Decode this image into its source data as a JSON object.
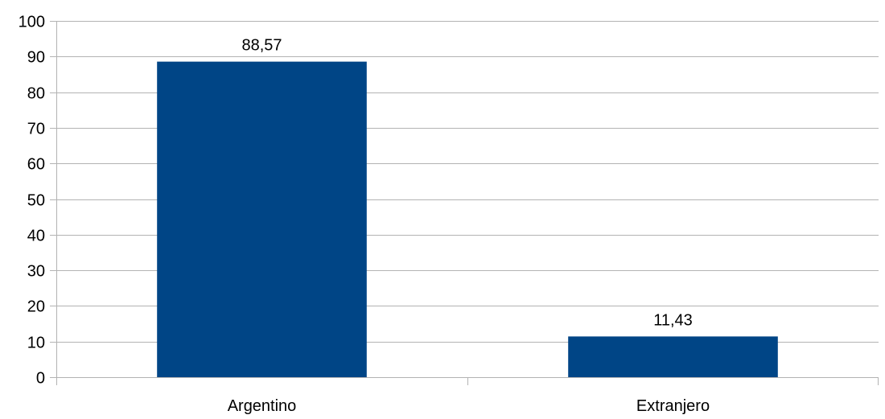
{
  "chart_data": {
    "type": "bar",
    "categories": [
      "Argentino",
      "Extranjero"
    ],
    "values": [
      88.57,
      11.43
    ],
    "data_labels": [
      "88,57",
      "11,43"
    ],
    "title": "",
    "xlabel": "",
    "ylabel": "",
    "ylim": [
      0,
      100
    ],
    "yticks": [
      0,
      10,
      20,
      30,
      40,
      50,
      60,
      70,
      80,
      90,
      100
    ],
    "grid": true,
    "legend": "none",
    "bar_color": "#004586"
  }
}
